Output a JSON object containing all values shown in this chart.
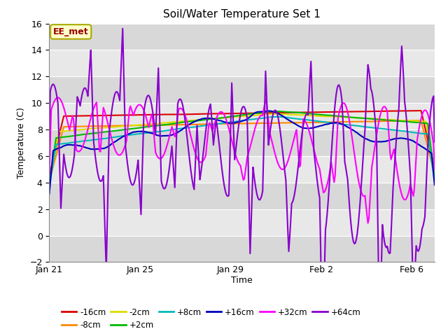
{
  "title": "Soil/Water Temperature Set 1",
  "xlabel": "Time",
  "ylabel": "Temperature (C)",
  "ylim": [
    -2,
    16
  ],
  "yticks": [
    -2,
    0,
    2,
    4,
    6,
    8,
    10,
    12,
    14,
    16
  ],
  "annotation_text": "EE_met",
  "annotation_bg": "#ffffcc",
  "annotation_border": "#aaa800",
  "annotation_text_color": "#990000",
  "bg_color": "#ffffff",
  "plot_bg_color": "#e0e0e0",
  "grid_color": "#ffffff",
  "band_colors": [
    "#d8d8d8",
    "#e8e8e8"
  ],
  "series_order": [
    "-16cm",
    "-8cm",
    "-2cm",
    "+2cm",
    "+8cm",
    "+16cm",
    "+32cm",
    "+64cm"
  ],
  "series": {
    "-16cm": {
      "color": "#dd0000",
      "lw": 1.5
    },
    "-8cm": {
      "color": "#ff8800",
      "lw": 1.5
    },
    "-2cm": {
      "color": "#dddd00",
      "lw": 1.5
    },
    "+2cm": {
      "color": "#00bb00",
      "lw": 1.5
    },
    "+8cm": {
      "color": "#00bbbb",
      "lw": 1.5
    },
    "+16cm": {
      "color": "#0000bb",
      "lw": 1.5
    },
    "+32cm": {
      "color": "#ff00ff",
      "lw": 1.5
    },
    "+64cm": {
      "color": "#8800cc",
      "lw": 1.5
    }
  },
  "xtick_labels": [
    "Jan 21",
    "Jan 25",
    "Jan 29",
    "Feb 2",
    "Feb 6"
  ],
  "xtick_positions": [
    0,
    4,
    8,
    12,
    16
  ]
}
